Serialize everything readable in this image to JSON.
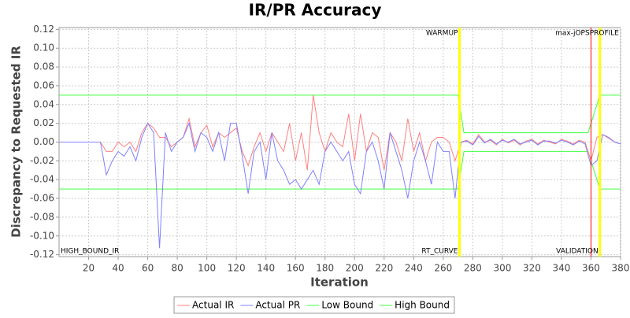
{
  "chart_data": {
    "type": "line",
    "title": "IR/PR Accuracy",
    "xlabel": "Iteration",
    "ylabel": "Discrepancy to Requested IR",
    "xlim": [
      0,
      380
    ],
    "ylim": [
      -0.122,
      0.122
    ],
    "xticks": [
      20,
      40,
      60,
      80,
      100,
      120,
      140,
      160,
      180,
      200,
      220,
      240,
      260,
      280,
      300,
      320,
      340,
      360,
      380
    ],
    "yticks": [
      {
        "value": 0.12,
        "label": "0.12"
      },
      {
        "value": 0.1,
        "label": "0.10"
      },
      {
        "value": 0.08,
        "label": "0.08"
      },
      {
        "value": 0.06,
        "label": "0.06"
      },
      {
        "value": 0.04,
        "label": "0.04"
      },
      {
        "value": 0.02,
        "label": "0.02"
      },
      {
        "value": 0,
        "label": "0.00"
      },
      {
        "value": -0.02,
        "label": "-0.02"
      },
      {
        "value": -0.04,
        "label": "-0.04"
      },
      {
        "value": -0.06,
        "label": "-0.06"
      },
      {
        "value": -0.08,
        "label": "-0.08"
      },
      {
        "value": -0.1,
        "label": "-0.10"
      },
      {
        "value": -0.12,
        "label": "-0.12"
      }
    ],
    "grid": true,
    "legend": "bottom",
    "markers": [
      {
        "x": 271,
        "color": "#ffff00"
      },
      {
        "x": 360,
        "color": "#ff0000"
      },
      {
        "x": 366,
        "color": "#ffff00"
      }
    ],
    "annotations": [
      {
        "text": "WARMUP",
        "x": 271,
        "pos": "top",
        "anchor": "end"
      },
      {
        "text": "RT_CURVE",
        "x": 271,
        "pos": "bottom",
        "anchor": "end"
      },
      {
        "text": "max-jOPSPROFILE",
        "x": 380,
        "pos": "top",
        "anchor": "end"
      },
      {
        "text": "VALIDATION",
        "x": 366,
        "pos": "bottom",
        "anchor": "end"
      },
      {
        "text": "HIGH_BOUND_IR",
        "x": 0,
        "pos": "bottom",
        "anchor": "start"
      }
    ],
    "series": [
      {
        "name": "Actual IR",
        "color": "#ff8080",
        "x": [
          0,
          4,
          8,
          12,
          16,
          20,
          24,
          28,
          32,
          36,
          40,
          44,
          48,
          52,
          56,
          60,
          64,
          68,
          72,
          76,
          80,
          84,
          88,
          92,
          96,
          100,
          104,
          108,
          112,
          116,
          120,
          124,
          128,
          132,
          136,
          140,
          144,
          148,
          152,
          156,
          160,
          164,
          168,
          172,
          176,
          180,
          184,
          188,
          192,
          196,
          200,
          204,
          208,
          212,
          216,
          220,
          224,
          228,
          232,
          236,
          240,
          244,
          248,
          252,
          256,
          260,
          264,
          268,
          272,
          276,
          280,
          284,
          288,
          292,
          296,
          300,
          304,
          308,
          312,
          316,
          320,
          324,
          328,
          332,
          336,
          340,
          344,
          348,
          352,
          356,
          360,
          364,
          368,
          372,
          376,
          380
        ],
        "values": [
          0,
          0,
          0,
          0,
          0,
          0,
          0,
          0,
          -0.01,
          -0.01,
          0,
          -0.005,
          0,
          -0.01,
          0.01,
          0.02,
          0.015,
          0.005,
          0.005,
          -0.005,
          0,
          0.005,
          0.025,
          -0.005,
          0.01,
          0.018,
          -0.005,
          0.01,
          0.005,
          0.01,
          0.015,
          -0.01,
          -0.025,
          -0.005,
          0.01,
          -0.01,
          0.01,
          0,
          -0.01,
          0.02,
          -0.02,
          0.01,
          -0.03,
          0.05,
          0.01,
          -0.01,
          0.01,
          0,
          -0.005,
          0.03,
          -0.02,
          0.03,
          -0.01,
          0.01,
          0.005,
          -0.03,
          0.01,
          0,
          -0.02,
          0.025,
          -0.01,
          0.01,
          -0.02,
          0,
          0.005,
          0.005,
          0,
          -0.02,
          0,
          0.002,
          -0.002,
          0.008,
          0,
          0.002,
          -0.003,
          0.003,
          -0.001,
          0.002,
          -0.003,
          0.001,
          0.003,
          -0.002,
          0.002,
          0,
          -0.002,
          0.003,
          0.001,
          -0.002,
          0.002,
          0,
          -0.02,
          0.005,
          0.008,
          0.004,
          0,
          -0.002
        ]
      },
      {
        "name": "Actual PR",
        "color": "#8080ff",
        "x": [
          0,
          4,
          8,
          12,
          16,
          20,
          24,
          28,
          32,
          36,
          40,
          44,
          48,
          52,
          56,
          60,
          64,
          68,
          72,
          76,
          80,
          84,
          88,
          92,
          96,
          100,
          104,
          108,
          112,
          116,
          120,
          124,
          128,
          132,
          136,
          140,
          144,
          148,
          152,
          156,
          160,
          164,
          168,
          172,
          176,
          180,
          184,
          188,
          192,
          196,
          200,
          204,
          208,
          212,
          216,
          220,
          224,
          228,
          232,
          236,
          240,
          244,
          248,
          252,
          256,
          260,
          264,
          268,
          272,
          276,
          280,
          284,
          288,
          292,
          296,
          300,
          304,
          308,
          312,
          316,
          320,
          324,
          328,
          332,
          336,
          340,
          344,
          348,
          352,
          356,
          360,
          364,
          368,
          372,
          376,
          380
        ],
        "values": [
          0,
          0,
          0,
          0,
          0,
          0,
          0,
          0,
          -0.035,
          -0.02,
          -0.01,
          -0.015,
          -0.005,
          -0.02,
          0.005,
          0.02,
          0.01,
          -0.113,
          0.01,
          -0.01,
          0,
          0.005,
          0.02,
          -0.01,
          0.01,
          0.005,
          -0.01,
          0.01,
          -0.02,
          0.02,
          0.02,
          -0.015,
          -0.055,
          -0.01,
          0,
          -0.04,
          0.01,
          -0.02,
          -0.03,
          -0.045,
          -0.04,
          -0.05,
          -0.04,
          -0.03,
          -0.045,
          -0.01,
          0,
          -0.01,
          -0.02,
          -0.01,
          -0.045,
          -0.055,
          -0.01,
          0,
          -0.02,
          -0.05,
          0.01,
          -0.01,
          -0.03,
          -0.06,
          -0.02,
          0,
          -0.02,
          -0.045,
          0,
          -0.01,
          -0.01,
          -0.06,
          0,
          0.001,
          -0.003,
          0.006,
          -0.001,
          0.003,
          -0.002,
          0.002,
          0,
          0.003,
          -0.002,
          0,
          0.002,
          -0.003,
          0.001,
          0.001,
          -0.001,
          0.002,
          0,
          -0.003,
          0.001,
          -0.002,
          -0.025,
          -0.02,
          0.008,
          0.005,
          0,
          -0.002
        ]
      },
      {
        "name": "Low Bound",
        "color": "#40ff40",
        "x": [
          0,
          270,
          274,
          358,
          366,
          380
        ],
        "values": [
          -0.05,
          -0.05,
          -0.01,
          -0.01,
          -0.05,
          -0.05
        ]
      },
      {
        "name": "High Bound",
        "color": "#40ff40",
        "x": [
          0,
          270,
          274,
          358,
          366,
          380
        ],
        "values": [
          0.05,
          0.05,
          0.01,
          0.01,
          0.05,
          0.05
        ]
      }
    ]
  }
}
